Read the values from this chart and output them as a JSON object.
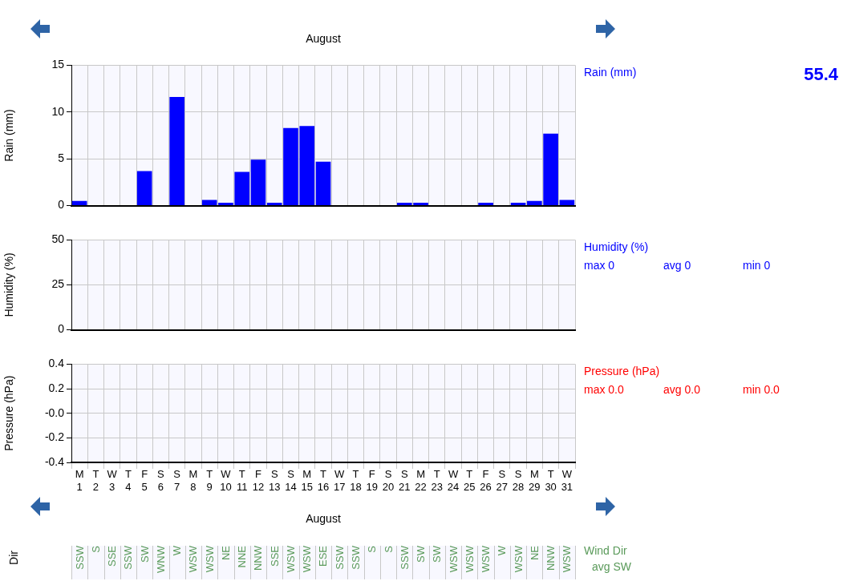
{
  "chart_data": [
    {
      "type": "other",
      "xlabel": "August"
    },
    {
      "type": "bar",
      "ylabel": "Rain (mm)",
      "categories": [
        null,
        null,
        null,
        null,
        null,
        null,
        null,
        null,
        null,
        null,
        null,
        null,
        null,
        null,
        null,
        null,
        null,
        null,
        null,
        null,
        null,
        null,
        null,
        null,
        null,
        null,
        null,
        null,
        null,
        null,
        null
      ],
      "series": [
        {
          "name": "Rain (mm)",
          "color": "#0000ff",
          "values": [
            0.5,
            0,
            0,
            0,
            3.7,
            0,
            11.6,
            0,
            0.6,
            0.3,
            3.6,
            4.9,
            0.3,
            8.3,
            8.5,
            4.7,
            0,
            0,
            0,
            0,
            0.3,
            0.3,
            0,
            0,
            0,
            0.3,
            0,
            0.3,
            0.5,
            7.7,
            0.6
          ]
        }
      ],
      "ylim": [
        0,
        15
      ],
      "yticks": [
        0,
        5,
        10,
        15
      ],
      "grid": true,
      "tick_labels": "y",
      "annotations": [
        "55.4"
      ]
    },
    {
      "type": "line",
      "ylabel": "Humidity (%)",
      "categories": [
        null,
        null,
        null,
        null,
        null,
        null,
        null,
        null,
        null,
        null,
        null,
        null,
        null,
        null,
        null,
        null,
        null,
        null,
        null,
        null,
        null,
        null,
        null,
        null,
        null,
        null,
        null,
        null,
        null,
        null,
        null
      ],
      "series": [
        {
          "name": "Humidity (%)",
          "color": "#0000ff",
          "values": [
            null,
            null,
            null,
            null,
            null,
            null,
            null,
            null,
            null,
            null,
            null,
            null,
            null,
            null,
            null,
            null,
            null,
            null,
            null,
            null,
            null,
            null,
            null,
            null,
            null,
            null,
            null,
            null,
            null,
            null,
            null
          ]
        }
      ],
      "ylim": [
        0,
        50
      ],
      "yticks": [
        0,
        25,
        50
      ],
      "grid": true,
      "tick_labels": "y",
      "annotations": [
        "max 0",
        "avg 0",
        "min 0"
      ]
    },
    {
      "type": "line",
      "ylabel": "Pressure (hPa)",
      "xlabel": "August",
      "categories": [
        "M 1",
        "T 2",
        "W 3",
        "T 4",
        "F 5",
        "S 6",
        "S 7",
        "M 8",
        "T 9",
        "W 10",
        "T 11",
        "F 12",
        "S 13",
        "S 14",
        "M 15",
        "T 16",
        "W 17",
        "T 18",
        "F 19",
        "S 20",
        "S 21",
        "M 22",
        "T 23",
        "W 24",
        "T 25",
        "F 26",
        "S 27",
        "S 28",
        "M 29",
        "T 30",
        "W 31"
      ],
      "series": [
        {
          "name": "Pressure (hPa)",
          "color": "#ff0000",
          "values": [
            null,
            null,
            null,
            null,
            null,
            null,
            null,
            null,
            null,
            null,
            null,
            null,
            null,
            null,
            null,
            null,
            null,
            null,
            null,
            null,
            null,
            null,
            null,
            null,
            null,
            null,
            null,
            null,
            null,
            null,
            null
          ]
        }
      ],
      "ylim": [
        -0.4,
        0.4
      ],
      "yticks": [
        -0.4,
        -0.2,
        {
          "value": 0,
          "label": "-0.0"
        },
        0.2,
        0.4
      ],
      "grid": true,
      "annotations": [
        "max 0.0",
        "avg 0.0",
        "min 0.0"
      ]
    },
    {
      "type": "other",
      "ylabel": "Dir",
      "categories": [
        "SSW",
        "S",
        "SSE",
        "SSW",
        "SW",
        "WNW",
        "W",
        "WSW",
        "WSW",
        "NE",
        "NNE",
        "NNW",
        "SSE",
        "WSW",
        "WSW",
        "ESE",
        "SSW",
        "SSW",
        "S",
        "S",
        "SSW",
        "SW",
        "SW",
        "WSW",
        "WSW",
        "WSW",
        "W",
        "WSW",
        "NE",
        "NNW",
        "WSW"
      ],
      "title": "Wind Dir",
      "color": "#5a9a5a",
      "annotations": [
        "avg SW"
      ]
    }
  ]
}
